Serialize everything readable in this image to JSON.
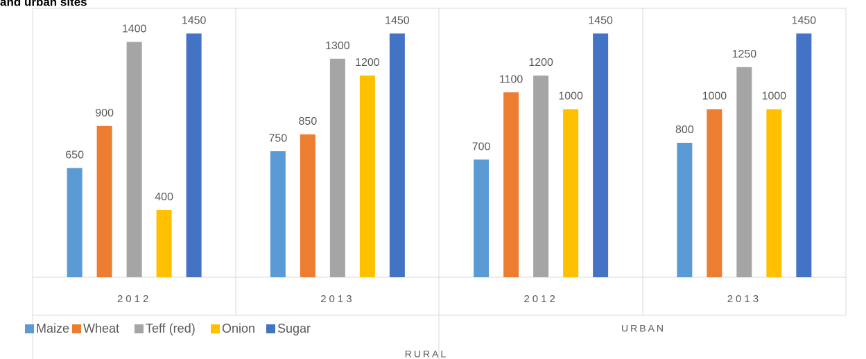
{
  "chart_data": {
    "type": "bar",
    "title": "and urban sites",
    "categories": [
      "2012",
      "2013",
      "2012",
      "2013"
    ],
    "groups": [
      "RURAL",
      "URBAN"
    ],
    "series": [
      {
        "name": "Maize",
        "color": "#5b9bd5",
        "values": [
          650,
          750,
          700,
          800
        ]
      },
      {
        "name": "Wheat",
        "color": "#ed7d31",
        "values": [
          900,
          850,
          1100,
          1000
        ]
      },
      {
        "name": "Teff (red)",
        "color": "#a5a5a5",
        "values": [
          1400,
          1300,
          1200,
          1250
        ]
      },
      {
        "name": "Onion",
        "color": "#ffc000",
        "values": [
          400,
          1200,
          1000,
          1000
        ]
      },
      {
        "name": "Sugar",
        "color": "#4472c4",
        "values": [
          1450,
          1450,
          1450,
          1450
        ]
      }
    ],
    "ylim": [
      0,
      1600
    ],
    "legend": "bottom-left"
  }
}
